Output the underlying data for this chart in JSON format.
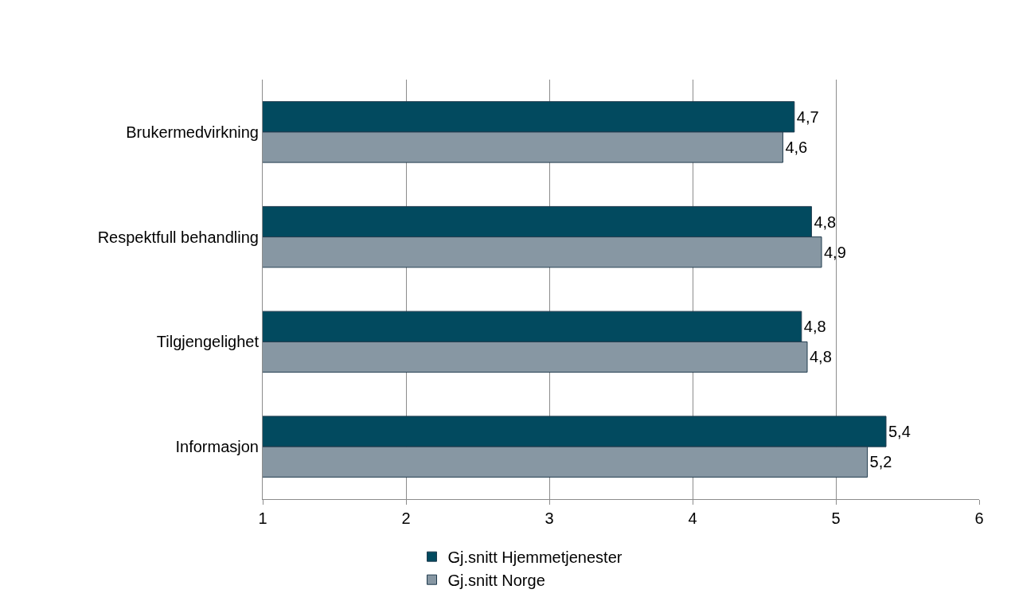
{
  "chart_data": {
    "type": "bar",
    "orientation": "horizontal",
    "categories": [
      "Brukermedvirkning",
      "Respektfull behandling",
      "Tilgjengelighet",
      "Informasjon"
    ],
    "series": [
      {
        "name": "Gj.snitt Hjemmetjenester",
        "color": "#024a5f",
        "values": [
          4.71,
          4.83,
          4.76,
          5.35
        ],
        "value_labels": [
          "4,7",
          "4,8",
          "4,8",
          "5,4"
        ]
      },
      {
        "name": "Gj.snitt Norge",
        "color": "#8797a3",
        "values": [
          4.63,
          4.9,
          4.8,
          5.22
        ],
        "value_labels": [
          "4,6",
          "4,9",
          "4,8",
          "5,2"
        ]
      }
    ],
    "xlim": [
      1,
      6
    ],
    "xticks": [
      1,
      2,
      3,
      4,
      5,
      6
    ],
    "grid": "x",
    "legend": "bottom"
  }
}
